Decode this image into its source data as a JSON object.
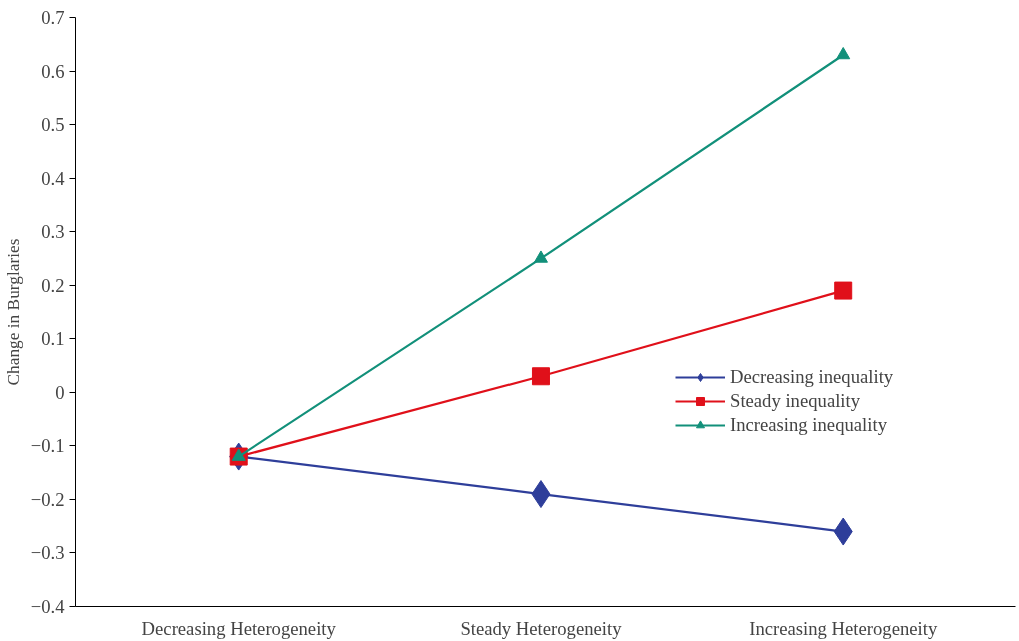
{
  "chart_data": {
    "type": "line",
    "ylabel": "Change in Burglaries",
    "categories": [
      "Decreasing Heterogeneity",
      "Steady Heterogeneity",
      "Increasing Heterogeneity"
    ],
    "series": [
      {
        "name": "Decreasing inequality",
        "color": "#2e3e9a",
        "marker": "diamond",
        "values": [
          -0.12,
          -0.19,
          -0.26
        ]
      },
      {
        "name": "Steady inequality",
        "color": "#e0101a",
        "marker": "square",
        "values": [
          -0.12,
          0.03,
          0.19
        ]
      },
      {
        "name": "Increasing inequality",
        "color": "#12907a",
        "marker": "triangle",
        "values": [
          -0.12,
          0.25,
          0.63
        ]
      }
    ],
    "ylim": [
      -0.4,
      0.7
    ],
    "yticks": [
      {
        "value": -0.4,
        "label": "−0.4"
      },
      {
        "value": -0.3,
        "label": "−0.3"
      },
      {
        "value": -0.2,
        "label": "−0.2"
      },
      {
        "value": -0.1,
        "label": "−0.1"
      },
      0,
      0.1,
      0.2,
      0.3,
      0.4,
      0.5,
      0.6,
      0.7
    ],
    "grid": false,
    "legend": "right",
    "line_style": "solid"
  }
}
